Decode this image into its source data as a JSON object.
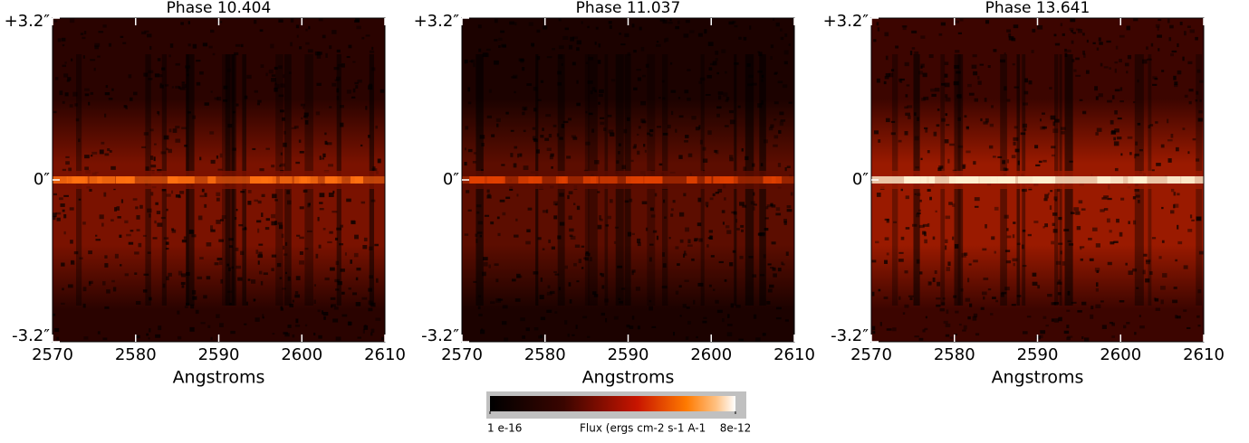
{
  "chart_data": [
    {
      "type": "image",
      "title": "Phase 10.404",
      "x_label": "Angstroms",
      "xlim": [
        2570,
        2610
      ],
      "xticks": [
        2570,
        2580,
        2590,
        2600,
        2610
      ],
      "ylim": [
        -3.2,
        3.2
      ],
      "yticks": [
        {
          "value": 3.2,
          "label": "+3.2″"
        },
        {
          "value": 0,
          "label": "0″"
        },
        {
          "value": -3.2,
          "label": "-3.2″"
        }
      ]
    },
    {
      "type": "image",
      "title": "Phase 11.037",
      "x_label": "Angstroms",
      "xlim": [
        2570,
        2610
      ],
      "xticks": [
        2570,
        2580,
        2590,
        2600,
        2610
      ],
      "ylim": [
        -3.2,
        3.2
      ],
      "yticks": [
        {
          "value": 3.2,
          "label": "+3.2″"
        },
        {
          "value": 0,
          "label": "0″"
        },
        {
          "value": -3.2,
          "label": "-3.2″"
        }
      ]
    },
    {
      "type": "image",
      "title": "Phase 13.641",
      "x_label": "Angstroms",
      "xlim": [
        2570,
        2610
      ],
      "xticks": [
        2570,
        2580,
        2590,
        2600,
        2610
      ],
      "ylim": [
        -3.2,
        3.2
      ],
      "yticks": [
        {
          "value": 3.2,
          "label": "+3.2″"
        },
        {
          "value": 0,
          "label": "0″"
        },
        {
          "value": -3.2,
          "label": "-3.2″"
        }
      ]
    }
  ],
  "colorbar": {
    "label": "Flux (ergs cm-2 s-1 A-1",
    "log_scale": true,
    "ticks": [
      {
        "value": 1e-16,
        "label": "1 e-16"
      },
      {
        "value": 8e-12,
        "label": "8e-12"
      }
    ]
  }
}
